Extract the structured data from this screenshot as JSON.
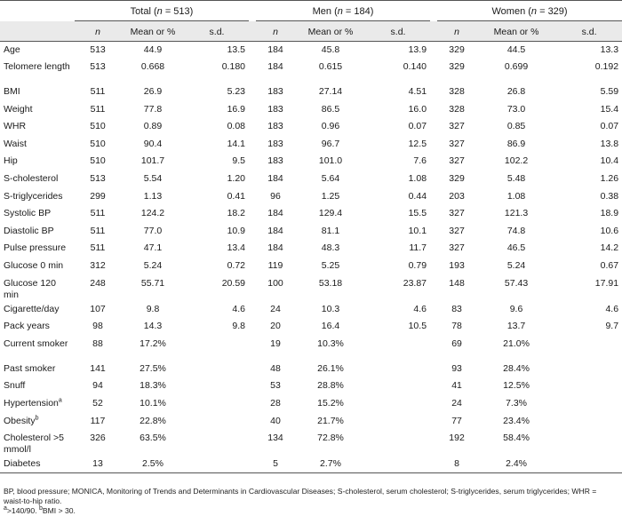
{
  "header": {
    "groups": [
      {
        "pre": "Total (",
        "n": "n",
        "post": " = 513)"
      },
      {
        "pre": "Men (",
        "n": "n",
        "post": " = 184)"
      },
      {
        "pre": "Women (",
        "n": "n",
        "post": " = 329)"
      }
    ],
    "sub": {
      "n": "n",
      "mean": "Mean or %",
      "sd": "s.d."
    }
  },
  "rows": [
    {
      "label": "Age",
      "t": [
        "513",
        "44.9",
        "13.5"
      ],
      "m": [
        "184",
        "45.8",
        "13.9"
      ],
      "w": [
        "329",
        "44.5",
        "13.3"
      ]
    },
    {
      "label": "Telomere length",
      "t": [
        "513",
        "0.668",
        "0.180"
      ],
      "m": [
        "184",
        "0.615",
        "0.140"
      ],
      "w": [
        "329",
        "0.699",
        "0.192"
      ]
    },
    {
      "label": "BMI",
      "t": [
        "511",
        "26.9",
        "5.23"
      ],
      "m": [
        "183",
        "27.14",
        "4.51"
      ],
      "w": [
        "328",
        "26.8",
        "5.59"
      ]
    },
    {
      "label": "Weight",
      "t": [
        "511",
        "77.8",
        "16.9"
      ],
      "m": [
        "183",
        "86.5",
        "16.0"
      ],
      "w": [
        "328",
        "73.0",
        "15.4"
      ]
    },
    {
      "label": "WHR",
      "t": [
        "510",
        "0.89",
        "0.08"
      ],
      "m": [
        "183",
        "0.96",
        "0.07"
      ],
      "w": [
        "327",
        "0.85",
        "0.07"
      ]
    },
    {
      "label": "Waist",
      "t": [
        "510",
        "90.4",
        "14.1"
      ],
      "m": [
        "183",
        "96.7",
        "12.5"
      ],
      "w": [
        "327",
        "86.9",
        "13.8"
      ]
    },
    {
      "label": "Hip",
      "t": [
        "510",
        "101.7",
        "9.5"
      ],
      "m": [
        "183",
        "101.0",
        "7.6"
      ],
      "w": [
        "327",
        "102.2",
        "10.4"
      ]
    },
    {
      "label": "S-cholesterol",
      "t": [
        "513",
        "5.54",
        "1.20"
      ],
      "m": [
        "184",
        "5.64",
        "1.08"
      ],
      "w": [
        "329",
        "5.48",
        "1.26"
      ]
    },
    {
      "label": "S-triglycerides",
      "t": [
        "299",
        "1.13",
        "0.41"
      ],
      "m": [
        "96",
        "1.25",
        "0.44"
      ],
      "w": [
        "203",
        "1.08",
        "0.38"
      ]
    },
    {
      "label": "Systolic BP",
      "t": [
        "511",
        "124.2",
        "18.2"
      ],
      "m": [
        "184",
        "129.4",
        "15.5"
      ],
      "w": [
        "327",
        "121.3",
        "18.9"
      ]
    },
    {
      "label": "Diastolic BP",
      "t": [
        "511",
        "77.0",
        "10.9"
      ],
      "m": [
        "184",
        "81.1",
        "10.1"
      ],
      "w": [
        "327",
        "74.8",
        "10.6"
      ]
    },
    {
      "label": "Pulse pressure",
      "t": [
        "511",
        "47.1",
        "13.4"
      ],
      "m": [
        "184",
        "48.3",
        "11.7"
      ],
      "w": [
        "327",
        "46.5",
        "14.2"
      ]
    },
    {
      "label": "Glucose 0 min",
      "t": [
        "312",
        "5.24",
        "0.72"
      ],
      "m": [
        "119",
        "5.25",
        "0.79"
      ],
      "w": [
        "193",
        "5.24",
        "0.67"
      ]
    },
    {
      "label": "Glucose 120 min",
      "t": [
        "248",
        "55.71",
        "20.59"
      ],
      "m": [
        "100",
        "53.18",
        "23.87"
      ],
      "w": [
        "148",
        "57.43",
        "17.91"
      ]
    },
    {
      "label": "Cigarette/day",
      "t": [
        "107",
        "9.8",
        "4.6"
      ],
      "m": [
        "24",
        "10.3",
        "4.6"
      ],
      "w": [
        "83",
        "9.6",
        "4.6"
      ]
    },
    {
      "label": "Pack years",
      "t": [
        "98",
        "14.3",
        "9.8"
      ],
      "m": [
        "20",
        "16.4",
        "10.5"
      ],
      "w": [
        "78",
        "13.7",
        "9.7"
      ]
    },
    {
      "label": "Current smoker",
      "t": [
        "88",
        "17.2%",
        ""
      ],
      "m": [
        "19",
        "10.3%",
        ""
      ],
      "w": [
        "69",
        "21.0%",
        ""
      ]
    },
    {
      "label": "Past smoker",
      "t": [
        "141",
        "27.5%",
        ""
      ],
      "m": [
        "48",
        "26.1%",
        ""
      ],
      "w": [
        "93",
        "28.4%",
        ""
      ]
    },
    {
      "label": "Snuff",
      "t": [
        "94",
        "18.3%",
        ""
      ],
      "m": [
        "53",
        "28.8%",
        ""
      ],
      "w": [
        "41",
        "12.5%",
        ""
      ]
    },
    {
      "label": "Hypertension",
      "sup": "a",
      "t": [
        "52",
        "10.1%",
        ""
      ],
      "m": [
        "28",
        "15.2%",
        ""
      ],
      "w": [
        "24",
        "7.3%",
        ""
      ]
    },
    {
      "label": "Obesity",
      "sup": "b",
      "t": [
        "117",
        "22.8%",
        ""
      ],
      "m": [
        "40",
        "21.7%",
        ""
      ],
      "w": [
        "77",
        "23.4%",
        ""
      ]
    },
    {
      "label": "Cholesterol >5 mmol/l",
      "t": [
        "326",
        "63.5%",
        ""
      ],
      "m": [
        "134",
        "72.8%",
        ""
      ],
      "w": [
        "192",
        "58.4%",
        ""
      ]
    },
    {
      "label": "Diabetes",
      "t": [
        "13",
        "2.5%",
        ""
      ],
      "m": [
        "5",
        "2.7%",
        ""
      ],
      "w": [
        "8",
        "2.4%",
        ""
      ]
    }
  ],
  "footnotes": {
    "abbrev": "BP, blood pressure; MONICA, Monitoring of Trends and Determinants in Cardiovascular Diseases; S-cholesterol, serum cholesterol; S-triglycerides, serum triglycerides; WHR = waist-to-hip ratio.",
    "a_mark": "a",
    "a_text": ">140/90. ",
    "b_mark": "b",
    "b_text": "BMI > 30."
  }
}
